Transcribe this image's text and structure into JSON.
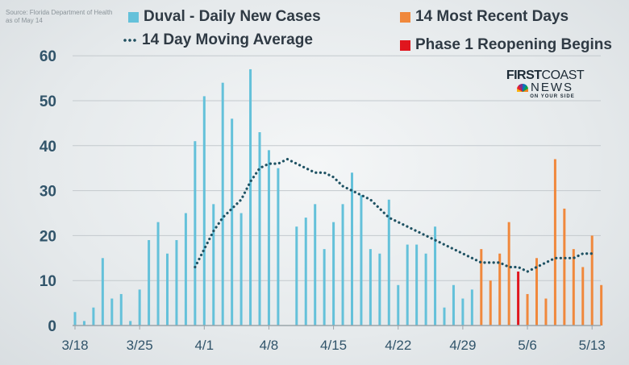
{
  "source": {
    "line1": "Source: Florida Department of Health",
    "line2": "as of May 14"
  },
  "legend": {
    "daily": "Duval - Daily New Cases",
    "moving_avg": "14 Day Moving Average",
    "recent": "14 Most Recent Days",
    "phase1": "Phase 1 Reopening Begins"
  },
  "logo": {
    "line1a": "FIRST",
    "line1b": "COAST",
    "line2": "NEWS",
    "line3": "ON YOUR SIDE"
  },
  "colors": {
    "daily": "#64c1da",
    "recent": "#f0883c",
    "phase1": "#e0161e",
    "moving_avg": "#1f5263",
    "grid": "#c3c9cd",
    "axis_text": "#31546a"
  },
  "chart_data": {
    "type": "bar",
    "title": "",
    "xlabel": "",
    "ylabel": "",
    "ylim": [
      0,
      60
    ],
    "yticks": [
      "0",
      "10",
      "20",
      "30",
      "40",
      "50",
      "60"
    ],
    "grid": true,
    "legend_position": "top",
    "x_tick_labels": [
      "3/18",
      "3/25",
      "4/1",
      "4/8",
      "4/15",
      "4/22",
      "4/29",
      "5/6",
      "5/13"
    ],
    "dates": [
      "3/18",
      "3/19",
      "3/20",
      "3/21",
      "3/22",
      "3/23",
      "3/24",
      "3/25",
      "3/26",
      "3/27",
      "3/28",
      "3/29",
      "3/30",
      "3/31",
      "4/1",
      "4/2",
      "4/3",
      "4/4",
      "4/5",
      "4/6",
      "4/7",
      "4/8",
      "4/9",
      "4/10",
      "4/11",
      "4/12",
      "4/13",
      "4/14",
      "4/15",
      "4/16",
      "4/17",
      "4/18",
      "4/19",
      "4/20",
      "4/21",
      "4/22",
      "4/23",
      "4/24",
      "4/25",
      "4/26",
      "4/27",
      "4/28",
      "4/29",
      "4/30",
      "5/1",
      "5/2",
      "5/3",
      "5/4",
      "5/5",
      "5/6",
      "5/7",
      "5/8",
      "5/9",
      "5/10",
      "5/11",
      "5/12",
      "5/13"
    ],
    "series": [
      {
        "name": "Duval - Daily New Cases",
        "values": [
          3,
          1,
          4,
          15,
          6,
          7,
          1,
          8,
          19,
          23,
          16,
          19,
          25,
          41,
          51,
          27,
          54,
          46,
          25,
          57,
          43,
          39,
          35,
          null,
          22,
          24,
          27,
          17,
          23,
          27,
          34,
          29,
          17,
          16,
          28,
          9,
          18,
          18,
          16,
          22,
          4,
          9,
          6,
          8,
          null,
          null,
          null,
          null,
          null,
          null,
          null,
          null,
          null,
          null,
          null,
          null,
          null
        ]
      },
      {
        "name": "14 Most Recent Days",
        "values": [
          null,
          null,
          null,
          null,
          null,
          null,
          null,
          null,
          null,
          null,
          null,
          null,
          null,
          null,
          null,
          null,
          null,
          null,
          null,
          null,
          null,
          null,
          null,
          null,
          null,
          null,
          null,
          null,
          null,
          null,
          null,
          null,
          null,
          null,
          null,
          null,
          null,
          null,
          null,
          null,
          null,
          null,
          null,
          null,
          17,
          10,
          16,
          23,
          null,
          7,
          15,
          6,
          37,
          26,
          17,
          13,
          20
        ]
      },
      {
        "name": "Phase 1 Reopening Begins",
        "values": [
          null,
          null,
          null,
          null,
          null,
          null,
          null,
          null,
          null,
          null,
          null,
          null,
          null,
          null,
          null,
          null,
          null,
          null,
          null,
          null,
          null,
          null,
          null,
          null,
          null,
          null,
          null,
          null,
          null,
          null,
          null,
          null,
          null,
          null,
          null,
          null,
          null,
          null,
          null,
          null,
          null,
          null,
          null,
          null,
          null,
          null,
          null,
          null,
          12,
          null,
          null,
          null,
          null,
          null,
          null,
          null,
          null
        ]
      },
      {
        "name": "14 Day Moving Average",
        "values": [
          null,
          null,
          null,
          null,
          null,
          null,
          null,
          null,
          null,
          null,
          null,
          null,
          null,
          13,
          17,
          21,
          24,
          26,
          28,
          32,
          35,
          36,
          36,
          37,
          36,
          35,
          34,
          34,
          33,
          31,
          30,
          29,
          28,
          26,
          24,
          23,
          22,
          21,
          20,
          19,
          18,
          17,
          16,
          15,
          14,
          14,
          14,
          13,
          13,
          12,
          13,
          14,
          15,
          15,
          15,
          16,
          16
        ]
      }
    ],
    "extra_recent": {
      "date": "5/14",
      "value": 9
    }
  }
}
